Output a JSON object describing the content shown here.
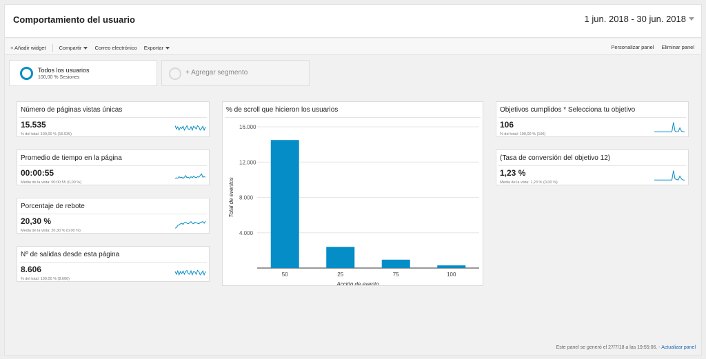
{
  "header": {
    "title": "Comportamiento del usuario",
    "date_range": "1 jun. 2018 - 30 jun. 2018"
  },
  "toolbar": {
    "add_widget": "+ Añadir widget",
    "share": "Compartir",
    "email": "Correo electrónico",
    "export": "Exportar",
    "customize": "Personalizar panel",
    "delete": "Eliminar panel"
  },
  "segments": {
    "active": {
      "name": "Todos los usuarios",
      "detail": "100,00 % Sesiones"
    },
    "add_label": "+ Agregar segmento"
  },
  "widgets_left": [
    {
      "title": "Número de páginas vistas únicas",
      "value": "15.535",
      "sub": "% del total: 100,00 % (15.535)",
      "spark": [
        0.6,
        0.3,
        0.5,
        0.2,
        0.45,
        0.35,
        0.55,
        0.2,
        0.4,
        0.6,
        0.3,
        0.25,
        0.5,
        0.2,
        0.55,
        0.45,
        0.3,
        0.6,
        0.5,
        0.2,
        0.35,
        0.55,
        0.2,
        0.5
      ]
    },
    {
      "title": "Promedio de tiempo en la página",
      "value": "00:00:55",
      "sub": "Media de la vista: 00:00:55 (0,00 %)",
      "spark": [
        0.2,
        0.25,
        0.2,
        0.35,
        0.25,
        0.3,
        0.2,
        0.3,
        0.45,
        0.25,
        0.3,
        0.2,
        0.35,
        0.25,
        0.4,
        0.3,
        0.25,
        0.35,
        0.3,
        0.45,
        0.6,
        0.3,
        0.35,
        0.3
      ]
    },
    {
      "title": "Porcentaje de rebote",
      "value": "20,30 %",
      "sub": "Media de la vista: 20,30 % (0,00 %)",
      "spark": [
        0.05,
        0.1,
        0.3,
        0.35,
        0.45,
        0.5,
        0.4,
        0.55,
        0.6,
        0.5,
        0.45,
        0.55,
        0.65,
        0.5,
        0.45,
        0.6,
        0.55,
        0.5,
        0.45,
        0.55,
        0.6,
        0.65,
        0.5,
        0.7
      ]
    },
    {
      "title": "Nº de salidas desde esta página",
      "value": "8.606",
      "sub": "% del total: 100,00 % (8.606)",
      "spark": [
        0.5,
        0.25,
        0.55,
        0.2,
        0.5,
        0.3,
        0.55,
        0.25,
        0.5,
        0.6,
        0.3,
        0.25,
        0.55,
        0.2,
        0.5,
        0.45,
        0.25,
        0.6,
        0.5,
        0.2,
        0.35,
        0.55,
        0.2,
        0.5
      ]
    }
  ],
  "widgets_right": [
    {
      "title": "Objetivos cumplidos * Selecciona tu objetivo",
      "value": "106",
      "sub": "% del total: 100,00 % (106)",
      "spark": [
        0.05,
        0.05,
        0.05,
        0.05,
        0.05,
        0.05,
        0.05,
        0.05,
        0.05,
        0.05,
        0.05,
        0.05,
        0.9,
        0.1,
        0.05,
        0.05,
        0.4,
        0.1,
        0.05,
        0.05
      ]
    },
    {
      "title": "(Tasa de conversión del objetivo 12)",
      "value": "1,23 %",
      "sub": "Media de la vista: 1,23 % (0,00 %)",
      "spark": [
        0.05,
        0.05,
        0.05,
        0.05,
        0.05,
        0.05,
        0.05,
        0.05,
        0.05,
        0.05,
        0.05,
        0.05,
        0.9,
        0.15,
        0.1,
        0.05,
        0.4,
        0.15,
        0.05,
        0.05
      ]
    }
  ],
  "chart_widget": {
    "title": "% de scroll que hicieron los usuarios"
  },
  "chart_data": {
    "type": "bar",
    "categories": [
      "50",
      "25",
      "75",
      "100"
    ],
    "values": [
      14500,
      2400,
      950,
      300
    ],
    "ylim": [
      0,
      16000
    ],
    "yticks": [
      "4.000",
      "8.000",
      "12.000",
      "16.000"
    ],
    "ytick_values": [
      4000,
      8000,
      12000,
      16000
    ],
    "xlabel": "Acción de evento",
    "ylabel": "Total de eventos",
    "bar_color": "#058dc7",
    "grid": true
  },
  "footer": {
    "text": "Este panel se generó el 27/7/18 a las 19:55:06. -",
    "refresh": "Actualizar panel"
  },
  "colors": {
    "accent": "#058dc7",
    "link": "#1a66b5"
  }
}
